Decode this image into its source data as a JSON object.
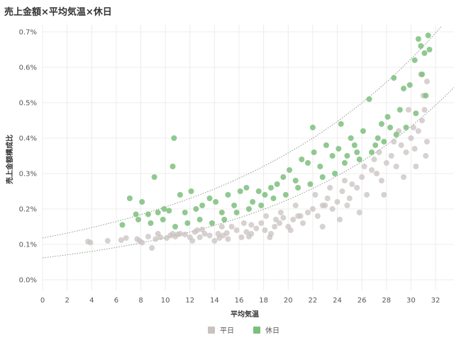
{
  "chart_data": {
    "type": "scatter",
    "title": "売上金額×平均気温×休日",
    "xlabel": "平均気温",
    "ylabel": "売上金額構成比",
    "xlim": [
      0,
      33.5
    ],
    "ylim": [
      -0.0003,
      0.0072
    ],
    "x_ticks": [
      0,
      2,
      4,
      6,
      8,
      10,
      12,
      14,
      16,
      18,
      20,
      22,
      24,
      26,
      28,
      30,
      32
    ],
    "x_tick_labels": [
      "0",
      "2",
      "4",
      "6",
      "8",
      "10",
      "12",
      "14",
      "16",
      "18",
      "20",
      "22",
      "24",
      "26",
      "28",
      "30",
      "32"
    ],
    "y_ticks": [
      0,
      0.001,
      0.002,
      0.003,
      0.004,
      0.005,
      0.006,
      0.007
    ],
    "y_tick_labels": [
      "0.0%",
      "0.1%",
      "0.2%",
      "0.3%",
      "0.4%",
      "0.5%",
      "0.6%",
      "0.7%"
    ],
    "grid": true,
    "legend_position": "bottom-center",
    "trendline": "exponential",
    "series": [
      {
        "name": "平日",
        "color": "#c9c2c0",
        "trend": {
          "a": 0.00062,
          "b": 0.0648
        },
        "points": [
          [
            3.7,
            0.00108
          ],
          [
            3.9,
            0.00105
          ],
          [
            5.3,
            0.0011
          ],
          [
            6.4,
            0.00112
          ],
          [
            7.7,
            0.00115
          ],
          [
            8.1,
            0.00105
          ],
          [
            8.6,
            0.00122
          ],
          [
            8.9,
            0.0009
          ],
          [
            9.2,
            0.00115
          ],
          [
            9.6,
            0.0012
          ],
          [
            10.1,
            0.00118
          ],
          [
            10.4,
            0.00125
          ],
          [
            10.8,
            0.00122
          ],
          [
            11.2,
            0.0013
          ],
          [
            11.6,
            0.00128
          ],
          [
            12.0,
            0.0012
          ],
          [
            12.4,
            0.00135
          ],
          [
            12.8,
            0.0012
          ],
          [
            13.2,
            0.0013
          ],
          [
            13.6,
            0.00125
          ],
          [
            14.0,
            0.0011
          ],
          [
            14.3,
            0.0013
          ],
          [
            14.7,
            0.00125
          ],
          [
            15.1,
            0.00115
          ],
          [
            15.4,
            0.0015
          ],
          [
            15.8,
            0.0014
          ],
          [
            16.2,
            0.0012
          ],
          [
            16.6,
            0.00135
          ],
          [
            17.0,
            0.0013
          ],
          [
            17.4,
            0.00145
          ],
          [
            17.8,
            0.0016
          ],
          [
            18.1,
            0.0014
          ],
          [
            18.5,
            0.0012
          ],
          [
            18.9,
            0.0015
          ],
          [
            19.3,
            0.0016
          ],
          [
            19.6,
            0.00175
          ],
          [
            20.0,
            0.0015
          ],
          [
            20.4,
            0.0017
          ],
          [
            20.8,
            0.0018
          ],
          [
            21.2,
            0.0016
          ],
          [
            21.6,
            0.0019
          ],
          [
            22.0,
            0.002
          ],
          [
            22.4,
            0.0018
          ],
          [
            22.8,
            0.0021
          ],
          [
            23.2,
            0.0023
          ],
          [
            23.6,
            0.002
          ],
          [
            24.0,
            0.0022
          ],
          [
            24.4,
            0.0025
          ],
          [
            24.8,
            0.0021
          ],
          [
            25.2,
            0.0027
          ],
          [
            25.6,
            0.0026
          ],
          [
            26.0,
            0.0029
          ],
          [
            26.4,
            0.0024
          ],
          [
            26.8,
            0.0031
          ],
          [
            27.2,
            0.003
          ],
          [
            27.6,
            0.0028
          ],
          [
            28.0,
            0.0033
          ],
          [
            28.4,
            0.0035
          ],
          [
            28.8,
            0.0032
          ],
          [
            29.2,
            0.0038
          ],
          [
            29.6,
            0.0036
          ],
          [
            30.0,
            0.004
          ],
          [
            30.3,
            0.0037
          ],
          [
            30.6,
            0.0042
          ],
          [
            30.9,
            0.0045
          ],
          [
            31.1,
            0.0048
          ],
          [
            31.3,
            0.0039
          ],
          [
            11.0,
            0.00128
          ],
          [
            13.0,
            0.00142
          ],
          [
            15.0,
            0.00132
          ],
          [
            17.0,
            0.00155
          ],
          [
            19.0,
            0.0017
          ],
          [
            21.0,
            0.0018
          ],
          [
            23.0,
            0.0021
          ],
          [
            25.0,
            0.0023
          ],
          [
            27.0,
            0.0034
          ],
          [
            29.0,
            0.0042
          ],
          [
            31.0,
            0.0052
          ],
          [
            31.3,
            0.0056
          ],
          [
            30.8,
            0.0058
          ],
          [
            30.2,
            0.0043
          ],
          [
            29.8,
            0.0048
          ],
          [
            28.6,
            0.0039
          ],
          [
            27.4,
            0.0036
          ],
          [
            26.2,
            0.0032
          ],
          [
            24.6,
            0.0028
          ],
          [
            23.4,
            0.0026
          ],
          [
            22.2,
            0.0024
          ],
          [
            20.6,
            0.0021
          ],
          [
            19.4,
            0.0019
          ],
          [
            18.2,
            0.0018
          ],
          [
            16.4,
            0.0016
          ],
          [
            14.6,
            0.0015
          ],
          [
            12.6,
            0.0014
          ],
          [
            10.6,
            0.0013
          ],
          [
            9.4,
            0.0013
          ],
          [
            7.9,
            0.0011
          ],
          [
            6.8,
            0.00118
          ],
          [
            22.8,
            0.0015
          ],
          [
            24.2,
            0.0017
          ],
          [
            20.2,
            0.0014
          ],
          [
            18.6,
            0.0013
          ],
          [
            25.8,
            0.0019
          ],
          [
            27.8,
            0.0024
          ],
          [
            29.4,
            0.0029
          ],
          [
            30.4,
            0.0032
          ],
          [
            31.2,
            0.0035
          ],
          [
            12.2,
            0.0011
          ],
          [
            14.4,
            0.00118
          ],
          [
            16.8,
            0.00122
          ]
        ]
      },
      {
        "name": "休日",
        "color": "#7cbf7c",
        "trend": {
          "a": 0.00118,
          "b": 0.0555
        },
        "points": [
          [
            6.5,
            0.00155
          ],
          [
            7.1,
            0.0023
          ],
          [
            7.6,
            0.00185
          ],
          [
            8.1,
            0.0022
          ],
          [
            8.6,
            0.00185
          ],
          [
            9.1,
            0.0029
          ],
          [
            9.4,
            0.0019
          ],
          [
            9.9,
            0.002
          ],
          [
            10.3,
            0.00195
          ],
          [
            10.6,
            0.0032
          ],
          [
            10.7,
            0.004
          ],
          [
            11.2,
            0.0024
          ],
          [
            11.6,
            0.0019
          ],
          [
            12.1,
            0.0025
          ],
          [
            12.5,
            0.002
          ],
          [
            13.0,
            0.0021
          ],
          [
            13.6,
            0.0023
          ],
          [
            14.1,
            0.0022
          ],
          [
            14.6,
            0.0019
          ],
          [
            15.1,
            0.0024
          ],
          [
            15.6,
            0.0021
          ],
          [
            16.1,
            0.0025
          ],
          [
            16.6,
            0.0026
          ],
          [
            17.1,
            0.0022
          ],
          [
            17.6,
            0.0025
          ],
          [
            18.1,
            0.0024
          ],
          [
            18.6,
            0.0026
          ],
          [
            19.1,
            0.0027
          ],
          [
            19.6,
            0.0029
          ],
          [
            20.1,
            0.0031
          ],
          [
            20.6,
            0.0028
          ],
          [
            21.1,
            0.0034
          ],
          [
            21.6,
            0.0033
          ],
          [
            22.1,
            0.0036
          ],
          [
            22.6,
            0.0032
          ],
          [
            23.1,
            0.0038
          ],
          [
            23.6,
            0.0035
          ],
          [
            24.1,
            0.0037
          ],
          [
            24.6,
            0.0033
          ],
          [
            25.1,
            0.004
          ],
          [
            25.6,
            0.0036
          ],
          [
            26.1,
            0.0042
          ],
          [
            26.6,
            0.0051
          ],
          [
            27.1,
            0.0038
          ],
          [
            27.6,
            0.0044
          ],
          [
            28.1,
            0.0046
          ],
          [
            28.6,
            0.0057
          ],
          [
            29.1,
            0.0048
          ],
          [
            29.4,
            0.0054
          ],
          [
            29.9,
            0.0055
          ],
          [
            30.3,
            0.0062
          ],
          [
            30.6,
            0.0068
          ],
          [
            30.8,
            0.0066
          ],
          [
            31.1,
            0.0064
          ],
          [
            31.4,
            0.0069
          ],
          [
            31.5,
            0.0065
          ],
          [
            30.4,
            0.0047
          ],
          [
            29.6,
            0.0043
          ],
          [
            28.8,
            0.0041
          ],
          [
            27.8,
            0.0039
          ],
          [
            26.8,
            0.0036
          ],
          [
            25.8,
            0.0034
          ],
          [
            24.8,
            0.0035
          ],
          [
            23.8,
            0.003
          ],
          [
            22.8,
            0.0029
          ],
          [
            21.8,
            0.0027
          ],
          [
            20.8,
            0.0026
          ],
          [
            19.8,
            0.0024
          ],
          [
            18.8,
            0.0023
          ],
          [
            17.8,
            0.0021
          ],
          [
            16.8,
            0.002
          ],
          [
            15.8,
            0.0019
          ],
          [
            14.8,
            0.0017
          ],
          [
            13.8,
            0.0016
          ],
          [
            12.8,
            0.0017
          ],
          [
            11.8,
            0.0016
          ],
          [
            10.8,
            0.0015
          ],
          [
            9.8,
            0.0017
          ],
          [
            8.8,
            0.0016
          ],
          [
            7.8,
            0.0017
          ],
          [
            22.0,
            0.0043
          ],
          [
            24.3,
            0.0044
          ],
          [
            25.4,
            0.0038
          ],
          [
            27.3,
            0.004
          ],
          [
            28.3,
            0.0043
          ],
          [
            30.9,
            0.0058
          ],
          [
            31.2,
            0.0052
          ]
        ]
      }
    ]
  }
}
